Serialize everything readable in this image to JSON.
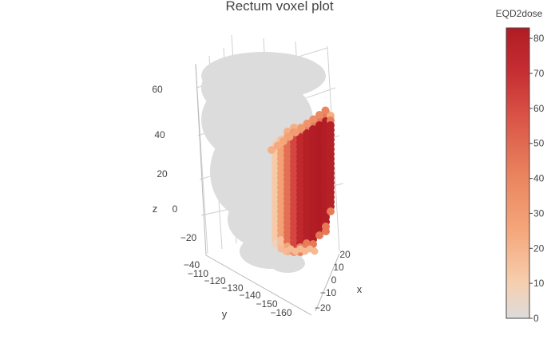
{
  "chart_data": {
    "type": "scatter3d",
    "title": "Rectum voxel plot",
    "colorbar": {
      "title": "EQD2dose",
      "tick_labels": [
        "0",
        "10",
        "20",
        "30",
        "40",
        "50",
        "60",
        "70",
        "80"
      ],
      "tick_values": [
        0,
        10,
        20,
        30,
        40,
        50,
        60,
        70,
        80
      ],
      "range": [
        0,
        83
      ],
      "colorscale": [
        [
          0.0,
          "#dcdcdc"
        ],
        [
          0.12,
          "#f6cfb0"
        ],
        [
          0.3,
          "#f5a77b"
        ],
        [
          0.5,
          "#e9825d"
        ],
        [
          0.7,
          "#d95246"
        ],
        [
          0.85,
          "#c52e32"
        ],
        [
          1.0,
          "#b11c24"
        ]
      ]
    },
    "axes": {
      "x": {
        "label": "x",
        "tick_labels": [
          "20",
          "10",
          "0",
          "−10",
          "−20"
        ],
        "tick_values": [
          20,
          10,
          0,
          -10,
          -20
        ]
      },
      "y": {
        "label": "y",
        "tick_labels": [
          "−110",
          "−120",
          "−130",
          "−140",
          "−150",
          "−160"
        ],
        "tick_values": [
          -110,
          -120,
          -130,
          -140,
          -150,
          -160
        ]
      },
      "z": {
        "label": "z",
        "tick_labels": [
          "60",
          "40",
          "20",
          "0",
          "−20",
          "−40"
        ],
        "tick_values": [
          60,
          40,
          20,
          0,
          -20,
          -40
        ]
      }
    },
    "grid": true,
    "legend_placement": "right"
  }
}
